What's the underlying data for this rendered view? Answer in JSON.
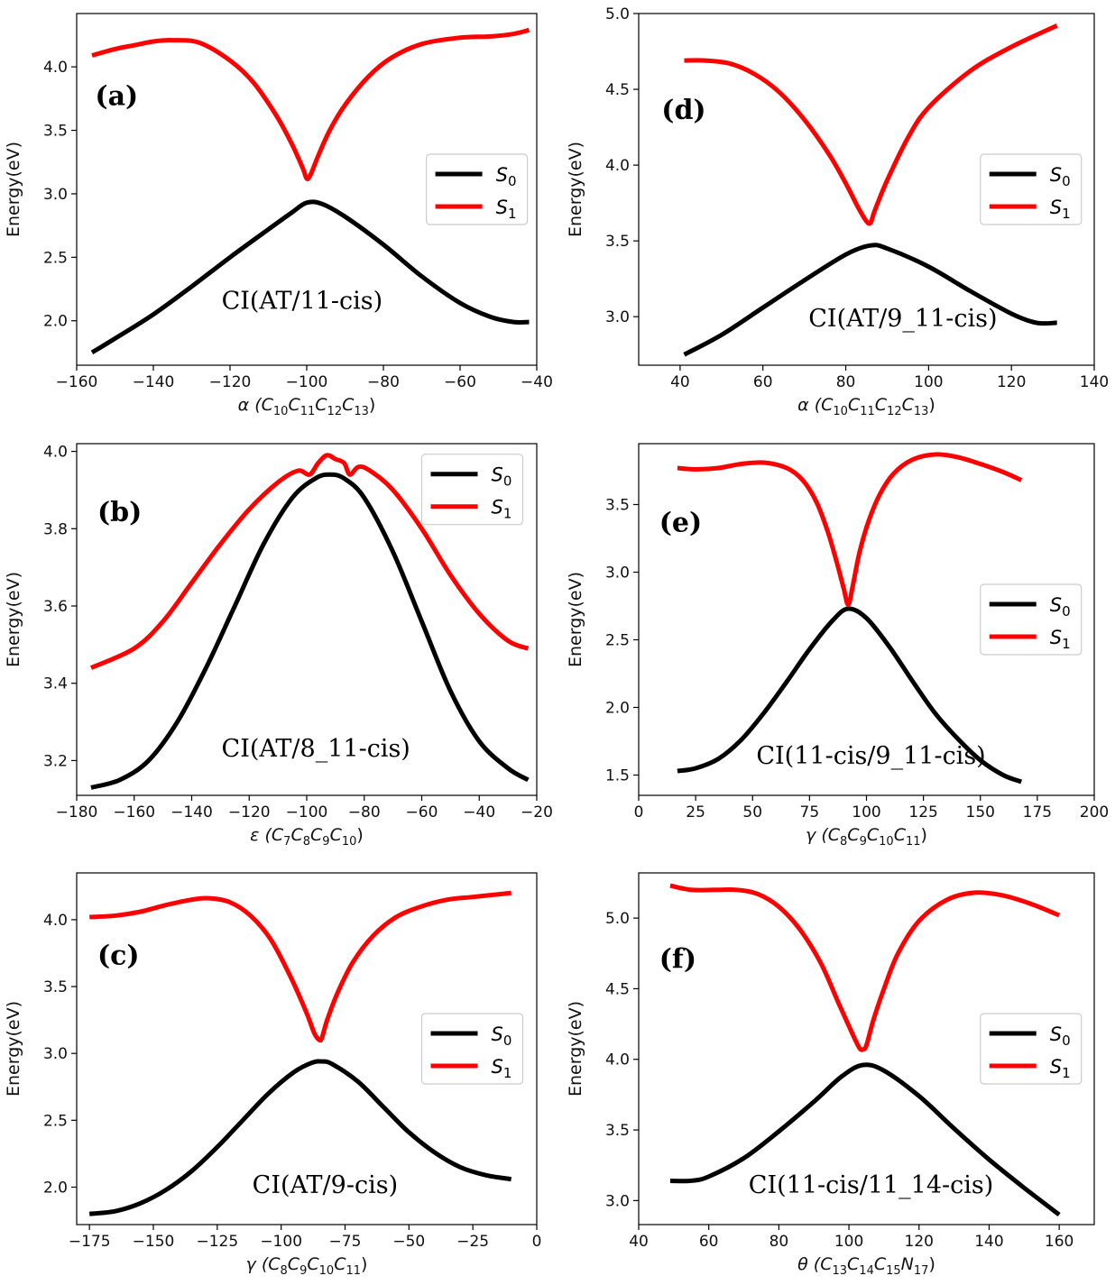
{
  "chart_data": [
    {
      "panel": "(a)",
      "type": "line",
      "annotation": "CI(AT/11-cis)",
      "xlabel": "α (C10C11C12C13)",
      "ylabel": "Energy(eV)",
      "xlim": [
        -160,
        -40
      ],
      "ylim": [
        1.65,
        4.42
      ],
      "xticks": [
        -160,
        -140,
        -120,
        -100,
        -80,
        -60,
        -40
      ],
      "yticks": [
        2.0,
        2.5,
        3.0,
        3.5,
        4.0
      ],
      "legend_position": "right",
      "series": [
        {
          "name": "S0",
          "color": "#000000",
          "x": [
            -156,
            -150,
            -140,
            -130,
            -120,
            -110,
            -104,
            -100,
            -96,
            -90,
            -80,
            -70,
            -60,
            -52,
            -46,
            -42
          ],
          "y": [
            1.75,
            1.86,
            2.05,
            2.27,
            2.5,
            2.72,
            2.85,
            2.93,
            2.92,
            2.82,
            2.6,
            2.35,
            2.14,
            2.03,
            1.99,
            1.99
          ]
        },
        {
          "name": "S1",
          "color": "#ff0000",
          "x": [
            -156,
            -150,
            -145,
            -140,
            -135,
            -128,
            -120,
            -114,
            -108,
            -104,
            -101,
            -100,
            -99,
            -97,
            -94,
            -90,
            -84,
            -78,
            -70,
            -60,
            -52,
            -46,
            -42
          ],
          "y": [
            4.09,
            4.14,
            4.17,
            4.2,
            4.21,
            4.19,
            4.05,
            3.88,
            3.62,
            3.4,
            3.2,
            3.12,
            3.15,
            3.3,
            3.5,
            3.7,
            3.92,
            4.07,
            4.18,
            4.23,
            4.24,
            4.26,
            4.29
          ]
        }
      ]
    },
    {
      "panel": "(d)",
      "type": "line",
      "annotation": "CI(AT/9_11-cis)",
      "xlabel": "α (C10C11C12C13)",
      "ylabel": "Energy(eV)",
      "xlim": [
        30,
        140
      ],
      "ylim": [
        2.68,
        5.0
      ],
      "xticks": [
        40,
        60,
        80,
        100,
        120,
        140
      ],
      "yticks": [
        3.0,
        3.5,
        4.0,
        4.5,
        5.0
      ],
      "legend_position": "right",
      "series": [
        {
          "name": "S0",
          "color": "#000000",
          "x": [
            41,
            50,
            60,
            70,
            80,
            86,
            90,
            100,
            110,
            120,
            126,
            131
          ],
          "y": [
            2.75,
            2.88,
            3.06,
            3.24,
            3.41,
            3.47,
            3.45,
            3.33,
            3.17,
            3.02,
            2.96,
            2.96
          ]
        },
        {
          "name": "S1",
          "color": "#ff0000",
          "x": [
            41,
            46,
            52,
            58,
            64,
            70,
            76,
            80,
            83,
            85,
            86,
            87,
            90,
            95,
            100,
            110,
            120,
            131
          ],
          "y": [
            4.69,
            4.69,
            4.67,
            4.6,
            4.48,
            4.3,
            4.07,
            3.88,
            3.72,
            3.63,
            3.62,
            3.7,
            3.9,
            4.18,
            4.38,
            4.62,
            4.78,
            4.92
          ]
        }
      ]
    },
    {
      "panel": "(b)",
      "type": "line",
      "annotation": "CI(AT/8_11-cis)",
      "xlabel": "ε (C7C8C9C10)",
      "ylabel": "Energy(eV)",
      "xlim": [
        -180,
        -20
      ],
      "ylim": [
        3.11,
        4.02
      ],
      "xticks": [
        -180,
        -160,
        -140,
        -120,
        -100,
        -80,
        -60,
        -40,
        -20
      ],
      "yticks": [
        3.2,
        3.4,
        3.6,
        3.8,
        4.0
      ],
      "legend_position": "top-right",
      "series": [
        {
          "name": "S0",
          "color": "#000000",
          "x": [
            -175,
            -165,
            -155,
            -145,
            -135,
            -125,
            -115,
            -105,
            -97,
            -92,
            -87,
            -80,
            -70,
            -60,
            -50,
            -40,
            -30,
            -23
          ],
          "y": [
            3.13,
            3.15,
            3.2,
            3.3,
            3.44,
            3.6,
            3.76,
            3.88,
            3.93,
            3.94,
            3.93,
            3.88,
            3.74,
            3.56,
            3.38,
            3.25,
            3.18,
            3.15
          ]
        },
        {
          "name": "S1",
          "color": "#ff0000",
          "x": [
            -175,
            -160,
            -150,
            -140,
            -130,
            -120,
            -110,
            -103,
            -99,
            -96,
            -93,
            -90,
            -87,
            -85,
            -82,
            -78,
            -70,
            -60,
            -50,
            -40,
            -30,
            -23
          ],
          "y": [
            3.44,
            3.49,
            3.56,
            3.66,
            3.76,
            3.85,
            3.92,
            3.95,
            3.94,
            3.97,
            3.99,
            3.98,
            3.97,
            3.94,
            3.96,
            3.95,
            3.9,
            3.8,
            3.68,
            3.58,
            3.51,
            3.49
          ]
        }
      ]
    },
    {
      "panel": "(e)",
      "type": "line",
      "annotation": "CI(11-cis/9_11-cis)",
      "xlabel": "γ (C8C9C10C11)",
      "ylabel": "Energy(eV)",
      "xlim": [
        0,
        200
      ],
      "ylim": [
        1.35,
        3.95
      ],
      "xticks": [
        0,
        25,
        50,
        75,
        100,
        125,
        150,
        175,
        200
      ],
      "yticks": [
        1.5,
        2.0,
        2.5,
        3.0,
        3.5
      ],
      "legend_position": "right",
      "series": [
        {
          "name": "S0",
          "color": "#000000",
          "x": [
            17,
            25,
            35,
            45,
            55,
            65,
            75,
            85,
            92,
            100,
            110,
            120,
            130,
            140,
            150,
            160,
            168
          ],
          "y": [
            1.53,
            1.55,
            1.62,
            1.76,
            1.96,
            2.19,
            2.43,
            2.64,
            2.73,
            2.66,
            2.45,
            2.2,
            1.96,
            1.77,
            1.61,
            1.5,
            1.45
          ]
        },
        {
          "name": "S1",
          "color": "#ff0000",
          "x": [
            17,
            25,
            35,
            45,
            55,
            65,
            72,
            78,
            83,
            87,
            90,
            92,
            94,
            97,
            101,
            106,
            112,
            120,
            130,
            140,
            150,
            160,
            168
          ],
          "y": [
            3.77,
            3.76,
            3.77,
            3.8,
            3.81,
            3.77,
            3.68,
            3.52,
            3.3,
            3.07,
            2.88,
            2.76,
            2.9,
            3.15,
            3.38,
            3.58,
            3.73,
            3.83,
            3.87,
            3.85,
            3.8,
            3.74,
            3.68
          ]
        }
      ]
    },
    {
      "panel": "(c)",
      "type": "line",
      "annotation": "CI(AT/9-cis)",
      "xlabel": "γ (C8C9C10C11)",
      "ylabel": "Energy(eV)",
      "xlim": [
        -180,
        0
      ],
      "ylim": [
        1.72,
        4.35
      ],
      "xticks": [
        -175,
        -150,
        -125,
        -100,
        -75,
        -50,
        -25,
        0
      ],
      "yticks": [
        2.0,
        2.5,
        3.0,
        3.5,
        4.0
      ],
      "legend_position": "right",
      "series": [
        {
          "name": "S0",
          "color": "#000000",
          "x": [
            -175,
            -165,
            -155,
            -145,
            -135,
            -125,
            -115,
            -105,
            -95,
            -88,
            -84,
            -80,
            -70,
            -60,
            -50,
            -40,
            -30,
            -20,
            -10
          ],
          "y": [
            1.8,
            1.82,
            1.88,
            1.98,
            2.12,
            2.3,
            2.5,
            2.7,
            2.86,
            2.93,
            2.94,
            2.92,
            2.79,
            2.6,
            2.41,
            2.26,
            2.15,
            2.09,
            2.06
          ]
        },
        {
          "name": "S1",
          "color": "#ff0000",
          "x": [
            -175,
            -165,
            -155,
            -145,
            -135,
            -128,
            -120,
            -112,
            -104,
            -96,
            -90,
            -87,
            -85,
            -84,
            -82,
            -78,
            -72,
            -64,
            -55,
            -45,
            -35,
            -25,
            -15,
            -10
          ],
          "y": [
            4.02,
            4.03,
            4.06,
            4.11,
            4.15,
            4.16,
            4.13,
            4.03,
            3.85,
            3.56,
            3.3,
            3.15,
            3.1,
            3.12,
            3.25,
            3.45,
            3.68,
            3.88,
            4.02,
            4.1,
            4.15,
            4.17,
            4.19,
            4.2
          ]
        }
      ]
    },
    {
      "panel": "(f)",
      "type": "line",
      "annotation": "CI(11-cis/11_14-cis)",
      "xlabel": "θ (C13C14C15N17)",
      "ylabel": "Energy(eV)",
      "xlim": [
        40,
        170
      ],
      "ylim": [
        2.83,
        5.32
      ],
      "xticks": [
        40,
        60,
        80,
        100,
        120,
        140,
        160
      ],
      "yticks": [
        3.0,
        3.5,
        4.0,
        4.5,
        5.0
      ],
      "legend_position": "right",
      "series": [
        {
          "name": "S0",
          "color": "#000000",
          "x": [
            49,
            55,
            60,
            70,
            80,
            90,
            98,
            104,
            110,
            120,
            130,
            140,
            150,
            160
          ],
          "y": [
            3.14,
            3.14,
            3.17,
            3.3,
            3.49,
            3.7,
            3.88,
            3.96,
            3.92,
            3.74,
            3.51,
            3.29,
            3.09,
            2.9
          ]
        },
        {
          "name": "S1",
          "color": "#ff0000",
          "x": [
            49,
            55,
            62,
            68,
            74,
            80,
            86,
            92,
            97,
            101,
            103,
            104,
            105,
            107,
            110,
            114,
            120,
            128,
            136,
            144,
            152,
            160
          ],
          "y": [
            5.23,
            5.2,
            5.2,
            5.2,
            5.17,
            5.08,
            4.92,
            4.68,
            4.4,
            4.18,
            4.08,
            4.07,
            4.1,
            4.28,
            4.5,
            4.75,
            4.98,
            5.13,
            5.18,
            5.16,
            5.1,
            5.02
          ]
        }
      ]
    }
  ]
}
